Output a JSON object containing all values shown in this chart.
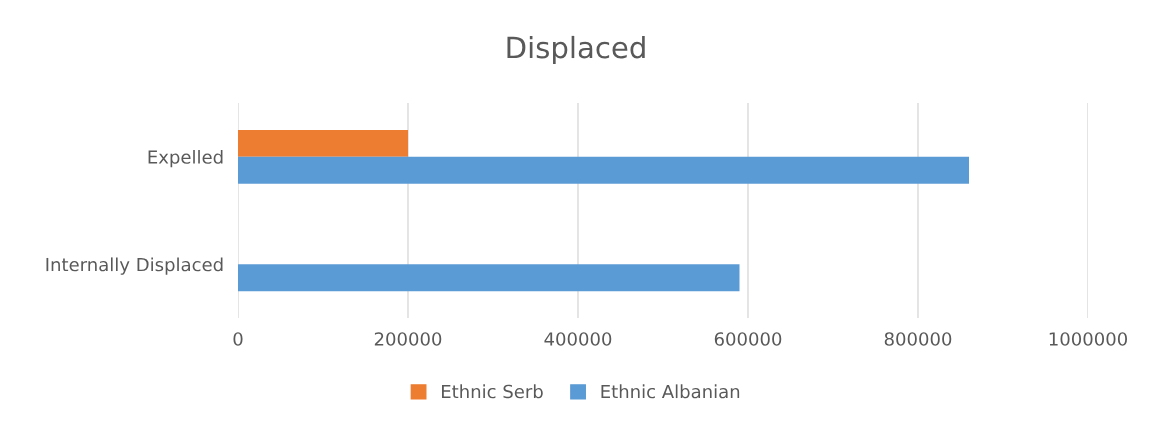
{
  "chart_data": {
    "type": "bar",
    "orientation": "horizontal",
    "title": "Displaced",
    "categories": [
      "Expelled",
      "Internally Displaced"
    ],
    "series": [
      {
        "name": "Ethnic Serb",
        "color": "#ed7d31",
        "values": [
          200000,
          null
        ]
      },
      {
        "name": "Ethnic Albanian",
        "color": "#5b9bd5",
        "values": [
          860000,
          590000
        ]
      }
    ],
    "xlim": [
      0,
      1000000
    ],
    "xticks": [
      0,
      200000,
      400000,
      600000,
      800000,
      1000000
    ],
    "grid": "x",
    "legend": "bottom"
  }
}
